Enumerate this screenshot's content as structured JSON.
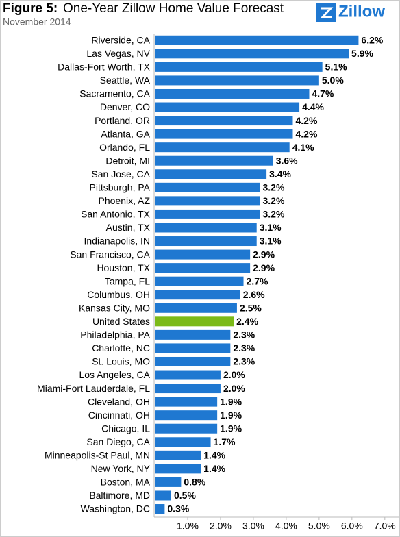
{
  "chart_data": {
    "type": "hbar",
    "figure": "Figure 5:",
    "title": "One-Year Zillow Home Value Forecast",
    "subtitle": "November 2014",
    "logo": "Zillow",
    "categories": [
      "Riverside, CA",
      "Las Vegas, NV",
      "Dallas-Fort Worth, TX",
      "Seattle, WA",
      "Sacramento, CA",
      "Denver, CO",
      "Portland, OR",
      "Atlanta, GA",
      "Orlando, FL",
      "Detroit, MI",
      "San Jose, CA",
      "Pittsburgh, PA",
      "Phoenix, AZ",
      "San Antonio, TX",
      "Austin, TX",
      "Indianapolis, IN",
      "San Francisco, CA",
      "Houston, TX",
      "Tampa, FL",
      "Columbus, OH",
      "Kansas City, MO",
      "United States",
      "Philadelphia, PA",
      "Charlotte, NC",
      "St. Louis, MO",
      "Los Angeles, CA",
      "Miami-Fort Lauderdale, FL",
      "Cleveland, OH",
      "Cincinnati, OH",
      "Chicago, IL",
      "San Diego, CA",
      "Minneapolis-St Paul, MN",
      "New York, NY",
      "Boston, MA",
      "Baltimore, MD",
      "Washington, DC"
    ],
    "values": [
      6.2,
      5.9,
      5.1,
      5.0,
      4.7,
      4.4,
      4.2,
      4.2,
      4.1,
      3.6,
      3.4,
      3.2,
      3.2,
      3.2,
      3.1,
      3.1,
      2.9,
      2.9,
      2.7,
      2.6,
      2.5,
      2.4,
      2.3,
      2.3,
      2.3,
      2.0,
      2.0,
      1.9,
      1.9,
      1.9,
      1.7,
      1.4,
      1.4,
      0.8,
      0.5,
      0.3
    ],
    "value_labels": [
      "6.2%",
      "5.9%",
      "5.1%",
      "5.0%",
      "4.7%",
      "4.4%",
      "4.2%",
      "4.2%",
      "4.1%",
      "3.6%",
      "3.4%",
      "3.2%",
      "3.2%",
      "3.2%",
      "3.1%",
      "3.1%",
      "2.9%",
      "2.9%",
      "2.7%",
      "2.6%",
      "2.5%",
      "2.4%",
      "2.3%",
      "2.3%",
      "2.3%",
      "2.0%",
      "2.0%",
      "1.9%",
      "1.9%",
      "1.9%",
      "1.7%",
      "1.4%",
      "1.4%",
      "0.8%",
      "0.5%",
      "0.3%"
    ],
    "colors": [
      "#1f78d1",
      "#1f78d1",
      "#1f78d1",
      "#1f78d1",
      "#1f78d1",
      "#1f78d1",
      "#1f78d1",
      "#1f78d1",
      "#1f78d1",
      "#1f78d1",
      "#1f78d1",
      "#1f78d1",
      "#1f78d1",
      "#1f78d1",
      "#1f78d1",
      "#1f78d1",
      "#1f78d1",
      "#1f78d1",
      "#1f78d1",
      "#1f78d1",
      "#1f78d1",
      "#7cba18",
      "#1f78d1",
      "#1f78d1",
      "#1f78d1",
      "#1f78d1",
      "#1f78d1",
      "#1f78d1",
      "#1f78d1",
      "#1f78d1",
      "#1f78d1",
      "#1f78d1",
      "#1f78d1",
      "#1f78d1",
      "#1f78d1",
      "#1f78d1"
    ],
    "xlim": [
      0,
      7.4
    ],
    "xticks": [
      {
        "value": 1,
        "label": "1.0%"
      },
      {
        "value": 2,
        "label": "2.0%"
      },
      {
        "value": 3,
        "label": "3.0%"
      },
      {
        "value": 4,
        "label": "4.0%"
      },
      {
        "value": 5,
        "label": "5.0%"
      },
      {
        "value": 6,
        "label": "6.0%"
      },
      {
        "value": 7,
        "label": "7.0%"
      }
    ],
    "grid": false
  }
}
